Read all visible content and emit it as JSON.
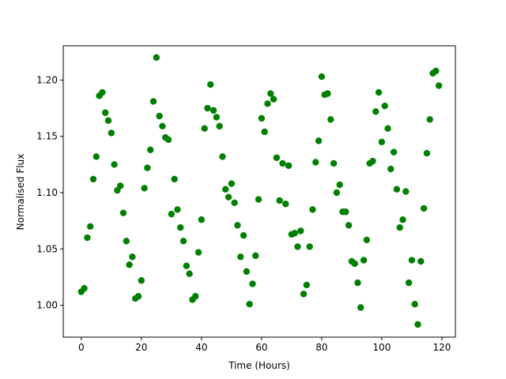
{
  "chart_data": {
    "type": "scatter",
    "x_label": "Time (Hours)",
    "y_label": "Normalised Flux",
    "color": "#008000",
    "x": [
      0,
      1,
      2,
      3,
      4,
      5,
      6,
      7,
      8,
      9,
      10,
      11,
      12,
      13,
      14,
      15,
      16,
      17,
      18,
      19,
      20,
      21,
      22,
      23,
      24,
      25,
      26,
      27,
      28,
      29,
      30,
      31,
      32,
      33,
      34,
      35,
      36,
      37,
      38,
      39,
      40,
      41,
      42,
      43,
      44,
      45,
      46,
      47,
      48,
      49,
      50,
      51,
      52,
      53,
      54,
      55,
      56,
      57,
      58,
      59,
      60,
      61,
      62,
      63,
      64,
      65,
      66,
      67,
      68,
      69,
      70,
      71,
      72,
      73,
      74,
      75,
      76,
      77,
      78,
      79,
      80,
      81,
      82,
      83,
      84,
      85,
      86,
      87,
      88,
      89,
      90,
      91,
      92,
      93,
      94,
      95,
      96,
      97,
      98,
      99,
      100,
      101,
      102,
      103,
      104,
      105,
      106,
      107,
      108,
      109,
      110,
      111,
      112,
      113,
      114,
      115,
      116,
      117,
      118,
      119
    ],
    "values": [
      1.012,
      1.015,
      1.06,
      1.07,
      1.112,
      1.132,
      1.186,
      1.189,
      1.171,
      1.164,
      1.153,
      1.125,
      1.102,
      1.106,
      1.082,
      1.057,
      1.036,
      1.043,
      1.006,
      1.008,
      1.022,
      1.104,
      1.122,
      1.138,
      1.181,
      1.22,
      1.168,
      1.159,
      1.149,
      1.147,
      1.081,
      1.112,
      1.085,
      1.069,
      1.057,
      1.035,
      1.028,
      1.005,
      1.008,
      1.047,
      1.076,
      1.157,
      1.175,
      1.196,
      1.173,
      1.167,
      1.159,
      1.132,
      1.103,
      1.096,
      1.108,
      1.091,
      1.071,
      1.043,
      1.062,
      1.03,
      1.001,
      1.019,
      1.044,
      1.094,
      1.166,
      1.154,
      1.179,
      1.188,
      1.183,
      1.131,
      1.093,
      1.126,
      1.09,
      1.124,
      1.063,
      1.064,
      1.052,
      1.066,
      1.01,
      1.018,
      1.052,
      1.085,
      1.127,
      1.146,
      1.203,
      1.187,
      1.188,
      1.165,
      1.126,
      1.1,
      1.107,
      1.083,
      1.083,
      1.071,
      1.039,
      1.037,
      1.02,
      0.998,
      1.04,
      1.058,
      1.126,
      1.128,
      1.172,
      1.189,
      1.145,
      1.177,
      1.157,
      1.121,
      1.136,
      1.103,
      1.069,
      1.076,
      1.101,
      1.02,
      1.04,
      1.001,
      0.983,
      1.039,
      1.086,
      1.135,
      1.165,
      1.206,
      1.208,
      1.195
    ],
    "xlim": [
      -6,
      124.5
    ],
    "xticks": [
      0,
      20,
      40,
      60,
      80,
      100,
      120
    ],
    "ylim": [
      0.9717,
      1.2304
    ],
    "yticks": [
      {
        "value": 1,
        "label": "1.00"
      },
      1.05,
      {
        "value": 1.1,
        "label": "1.10"
      },
      1.15,
      {
        "value": 1.2,
        "label": "1.20"
      }
    ]
  }
}
